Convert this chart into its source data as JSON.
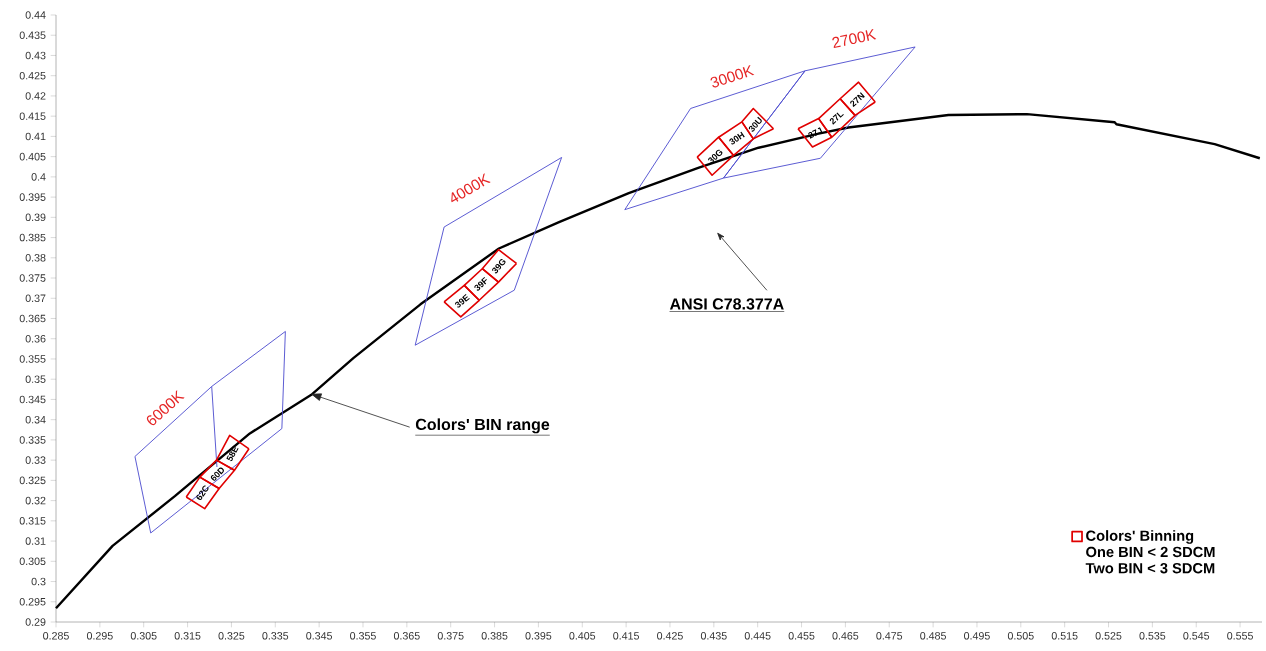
{
  "chart_data": {
    "type": "line",
    "xlim": [
      0.285,
      0.56
    ],
    "ylim": [
      0.29,
      0.44
    ],
    "xticks": [
      0.285,
      0.295,
      0.305,
      0.315,
      0.325,
      0.335,
      0.345,
      0.355,
      0.365,
      0.375,
      0.385,
      0.395,
      0.405,
      0.415,
      0.425,
      0.435,
      0.445,
      0.455,
      0.465,
      0.475,
      0.485,
      0.495,
      0.505,
      0.515,
      0.525,
      0.535,
      0.545,
      0.555
    ],
    "yticks": [
      0.29,
      0.295,
      0.3,
      0.305,
      0.31,
      0.315,
      0.32,
      0.325,
      0.33,
      0.335,
      0.34,
      0.345,
      0.35,
      0.355,
      0.36,
      0.365,
      0.37,
      0.375,
      0.38,
      0.385,
      0.39,
      0.395,
      0.4,
      0.405,
      0.41,
      0.415,
      0.42,
      0.425,
      0.43,
      0.435,
      0.44
    ],
    "legend": "bottom right",
    "marker": "none",
    "series": [
      {
        "color": "#000000",
        "x": [
          0.285,
          0.2979,
          0.3121,
          0.3292,
          0.3434,
          0.3528,
          0.3681,
          0.386,
          0.3997,
          0.4156,
          0.4316,
          0.4452,
          0.4589,
          0.4657,
          0.4885,
          0.5064,
          0.5264,
          0.5268,
          0.5492,
          0.5595
        ],
        "values": [
          0.2934,
          0.3088,
          0.3211,
          0.3366,
          0.3463,
          0.3552,
          0.3685,
          0.3823,
          0.3888,
          0.396,
          0.4023,
          0.4072,
          0.4107,
          0.4122,
          0.4153,
          0.4155,
          0.4135,
          0.413,
          0.4081,
          0.4046
        ]
      },
      {
        "color": "#5050d0",
        "x": [
          0.303,
          0.3205,
          0.3373
        ],
        "values": [
          0.3309,
          0.3482,
          0.3618
        ]
      },
      {
        "color": "#5050d0",
        "x": [
          0.303,
          0.3066,
          0.3365,
          0.3373
        ],
        "values": [
          0.3309,
          0.312,
          0.3378,
          0.3618
        ]
      },
      {
        "color": "#5050d0",
        "x": [
          0.3205,
          0.3217
        ],
        "values": [
          0.3482,
          0.3283
        ]
      },
      {
        "color": "#5050d0",
        "x": [
          0.3669,
          0.3735,
          0.4003
        ],
        "values": [
          0.3584,
          0.3876,
          0.4048
        ]
      },
      {
        "color": "#5050d0",
        "x": [
          0.3669,
          0.3895,
          0.4003
        ],
        "values": [
          0.3584,
          0.372,
          0.4048
        ]
      },
      {
        "color": "#5050d0",
        "x": [
          0.4147,
          0.4297,
          0.4558
        ],
        "values": [
          0.3919,
          0.4169,
          0.4262
        ]
      },
      {
        "color": "#5050d0",
        "x": [
          0.4147,
          0.4372,
          0.4558
        ],
        "values": [
          0.3919,
          0.3997,
          0.4262
        ]
      },
      {
        "color": "#5050d0",
        "x": [
          0.4372,
          0.4558,
          0.4809
        ],
        "values": [
          0.3997,
          0.4262,
          0.4321
        ]
      },
      {
        "color": "#5050d0",
        "x": [
          0.4372,
          0.4593,
          0.4809
        ],
        "values": [
          0.3997,
          0.4046,
          0.4321
        ]
      },
      {
        "name": "Colors' Binning",
        "color": "#e00000",
        "x": [
          0.3147,
          0.3178,
          0.3222
        ],
        "values": [
          0.3209,
          0.3258,
          0.323
        ]
      },
      {
        "color": "#e00000",
        "x": [
          0.3147,
          0.3189,
          0.3222
        ],
        "values": [
          0.3209,
          0.318,
          0.323
        ]
      },
      {
        "color": "#e00000",
        "x": [
          0.3178,
          0.3216,
          0.3257
        ],
        "values": [
          0.3258,
          0.33,
          0.3275
        ]
      },
      {
        "color": "#e00000",
        "x": [
          0.3178,
          0.3222,
          0.3257
        ],
        "values": [
          0.3258,
          0.323,
          0.3275
        ]
      },
      {
        "color": "#e00000",
        "x": [
          0.3216,
          0.3246,
          0.329
        ],
        "values": [
          0.33,
          0.3361,
          0.3328
        ]
      },
      {
        "color": "#e00000",
        "x": [
          0.3216,
          0.3257,
          0.329
        ],
        "values": [
          0.33,
          0.3275,
          0.3328
        ]
      },
      {
        "color": "#e00000",
        "x": [
          0.3735,
          0.3781,
          0.3815
        ],
        "values": [
          0.3691,
          0.3732,
          0.3695
        ]
      },
      {
        "color": "#e00000",
        "x": [
          0.3735,
          0.3773,
          0.3815
        ],
        "values": [
          0.3691,
          0.3654,
          0.3695
        ]
      },
      {
        "color": "#e00000",
        "x": [
          0.3781,
          0.3822,
          0.3859
        ],
        "values": [
          0.3732,
          0.3773,
          0.374
        ]
      },
      {
        "color": "#e00000",
        "x": [
          0.3781,
          0.3815,
          0.3859
        ],
        "values": [
          0.3732,
          0.3695,
          0.374
        ]
      },
      {
        "color": "#e00000",
        "x": [
          0.3822,
          0.3859,
          0.39
        ],
        "values": [
          0.3773,
          0.382,
          0.3786
        ]
      },
      {
        "color": "#e00000",
        "x": [
          0.3822,
          0.3859,
          0.39
        ],
        "values": [
          0.3773,
          0.374,
          0.3786
        ]
      },
      {
        "color": "#e00000",
        "x": [
          0.4312,
          0.4361,
          0.4395
        ],
        "values": [
          0.4049,
          0.4098,
          0.4053
        ]
      },
      {
        "color": "#e00000",
        "x": [
          0.4312,
          0.4346,
          0.4395
        ],
        "values": [
          0.4049,
          0.4004,
          0.4053
        ]
      },
      {
        "color": "#e00000",
        "x": [
          0.4361,
          0.4414,
          0.444
        ],
        "values": [
          0.4098,
          0.4136,
          0.4094
        ]
      },
      {
        "color": "#e00000",
        "x": [
          0.4361,
          0.4395,
          0.444
        ],
        "values": [
          0.4098,
          0.4053,
          0.4094
        ]
      },
      {
        "color": "#e00000",
        "x": [
          0.4414,
          0.444,
          0.4486
        ],
        "values": [
          0.4136,
          0.4169,
          0.4119
        ]
      },
      {
        "color": "#e00000",
        "x": [
          0.4414,
          0.444,
          0.4486
        ],
        "values": [
          0.4136,
          0.4094,
          0.4119
        ]
      },
      {
        "color": "#e00000",
        "x": [
          0.4542,
          0.4589,
          0.4619
        ],
        "values": [
          0.4119,
          0.4144,
          0.4098
        ]
      },
      {
        "color": "#e00000",
        "x": [
          0.4542,
          0.4575,
          0.4619
        ],
        "values": [
          0.4119,
          0.4074,
          0.4098
        ]
      },
      {
        "color": "#e00000",
        "x": [
          0.4589,
          0.4638,
          0.4672
        ],
        "values": [
          0.4144,
          0.4193,
          0.4152
        ]
      },
      {
        "color": "#e00000",
        "x": [
          0.4589,
          0.4619,
          0.4672
        ],
        "values": [
          0.4144,
          0.4098,
          0.4152
        ]
      },
      {
        "color": "#e00000",
        "x": [
          0.4638,
          0.468,
          0.4718
        ],
        "values": [
          0.4193,
          0.4234,
          0.4185
        ]
      },
      {
        "color": "#e00000",
        "x": [
          0.4638,
          0.4672,
          0.4718
        ],
        "values": [
          0.4193,
          0.4152,
          0.4185
        ]
      }
    ],
    "annotations": [
      "6000K",
      "4000K",
      "3000K",
      "2700K",
      "62C",
      "60D",
      "58E",
      "39E",
      "39F",
      "39G",
      "30G",
      "30H",
      "30U",
      "27J",
      "27L",
      "27N",
      {
        "text": "Colors' BIN range",
        "x": 0.3433,
        "y": 0.3463
      },
      "ANSI C78.377A",
      "One BIN < 2 SDCM",
      "Two BIN < 3 SDCM"
    ]
  }
}
